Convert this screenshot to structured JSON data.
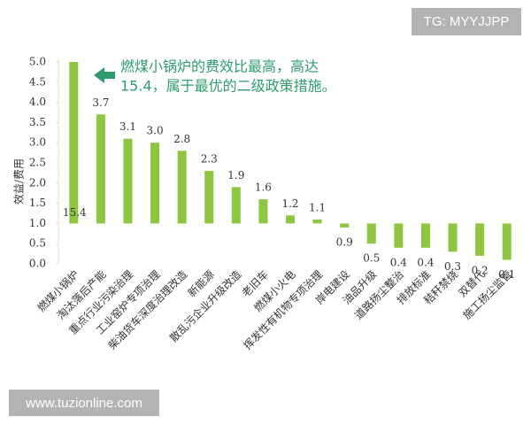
{
  "chart_data": {
    "type": "bar",
    "y_label": "效益/费用",
    "annotation": [
      "燃煤小锅炉的费效比最高，高达",
      "15.4，属于最优的二级政策措施。"
    ],
    "watermarks": [
      "TG: MYYJJPP",
      "www.tuzionline.com"
    ],
    "categories": [
      "燃煤小锅炉",
      "淘汰落后产能",
      "重点行业污染治理",
      "工业窑炉专项治理",
      "柴油货车深度治理改造",
      "新能源",
      "散乱污企业升级改造",
      "老旧车",
      "燃煤小火电",
      "挥发性有机物专项治理",
      "岸电建设",
      "油品升级",
      "道路扬尘整治",
      "排放标准",
      "秸秆禁烧",
      "双替代",
      "施工扬尘监管"
    ],
    "values": [
      15.4,
      3.7,
      3.1,
      3.0,
      2.8,
      2.3,
      1.9,
      1.6,
      1.2,
      1.1,
      0.9,
      0.5,
      0.4,
      0.4,
      0.3,
      0.2,
      0.1
    ],
    "value_labels": [
      "15.4",
      "3.7",
      "3.1",
      "3.0",
      "2.8",
      "2.3",
      "1.9",
      "1.6",
      "1.2",
      "1.1",
      "0.9",
      "0.5",
      "0.4",
      "0.4",
      "0.3",
      "0.2",
      "0.1"
    ],
    "color": "#8dc63f",
    "baseline": 1,
    "ylim": [
      0,
      5
    ],
    "yticks": [
      {
        "value": 0,
        "label": "0.0"
      },
      {
        "value": 0.5,
        "label": "0.5"
      },
      {
        "value": 1,
        "label": "1.0"
      },
      {
        "value": 1.5,
        "label": "1.5"
      },
      {
        "value": 2,
        "label": "2.0"
      },
      {
        "value": 2.5,
        "label": "2.5"
      },
      {
        "value": 3,
        "label": "3.0"
      },
      {
        "value": 3.5,
        "label": "3.5"
      },
      {
        "value": 4,
        "label": "4.0"
      },
      {
        "value": 4.5,
        "label": "4.5"
      },
      {
        "value": 5,
        "label": "5.0"
      }
    ]
  }
}
